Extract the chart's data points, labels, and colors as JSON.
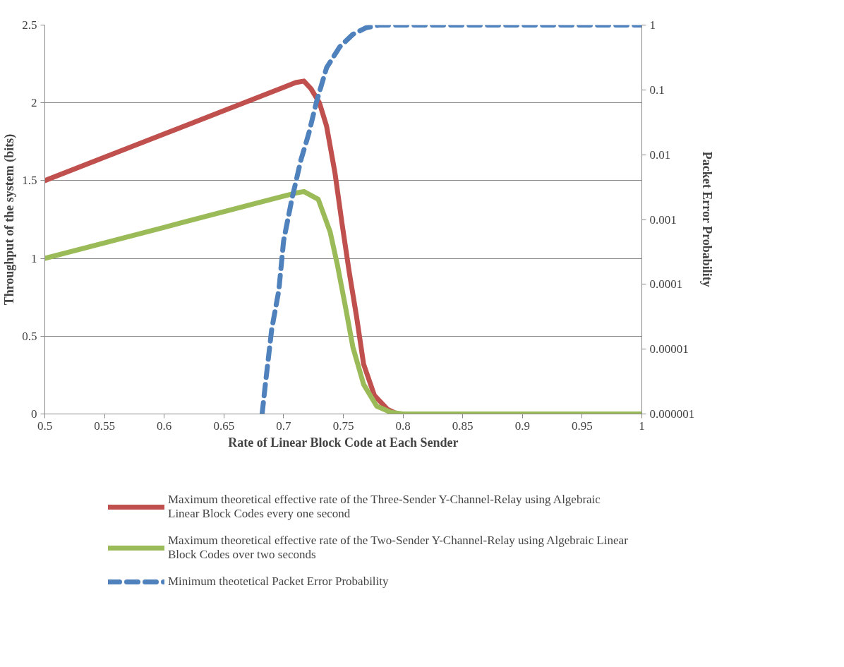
{
  "chart_data": {
    "type": "line",
    "xlabel": "Rate of Linear Block Code at Each Sender",
    "ylabel": "Throughput of the system (bits)",
    "y2label": "Packet Error Probability",
    "xlim": [
      0.5,
      1
    ],
    "xticks": [
      0.5,
      0.55,
      0.6,
      0.65,
      0.7,
      0.75,
      0.8,
      0.85,
      0.9,
      0.95,
      1
    ],
    "ylim": [
      0,
      2.5
    ],
    "yticks": [
      0,
      0.5,
      1,
      1.5,
      2,
      2.5
    ],
    "y2lim": [
      1e-06,
      1
    ],
    "y2ticks": [
      {
        "value": 1e-06,
        "label": "0.000001"
      },
      {
        "value": 1e-05,
        "label": "0.00001"
      },
      {
        "value": 0.0001,
        "label": "0.0001"
      },
      {
        "value": 0.001,
        "label": "0.001"
      },
      {
        "value": 0.01,
        "label": "0.01"
      },
      {
        "value": 0.1,
        "label": "0.1"
      },
      {
        "value": 1,
        "label": "1"
      }
    ],
    "log": "y2",
    "grid": "y",
    "legend": "bottom",
    "series": [
      {
        "name": "Maximum theoretical effective rate of the Three-Sender Y-Channel-Relay using Algebraic Linear Block Codes every one second",
        "color": "#c0504d",
        "line_style": "solid",
        "x": [
          0.5,
          0.55,
          0.6,
          0.65,
          0.7,
          0.71,
          0.717,
          0.723,
          0.73,
          0.736,
          0.743,
          0.749,
          0.755,
          0.761,
          0.767,
          0.776,
          0.787,
          0.795
        ],
        "values": [
          1.5,
          1.65,
          1.8,
          1.95,
          2.1,
          2.13,
          2.14,
          2.09,
          2.0,
          1.85,
          1.55,
          1.22,
          0.91,
          0.63,
          0.32,
          0.12,
          0.03,
          0
        ]
      },
      {
        "name": "Maximum theoretical effective rate of the Two-Sender Y-Channel-Relay using Algebraic Linear Block Codes over two seconds",
        "color": "#9bbb59",
        "line_style": "solid",
        "x": [
          0.5,
          0.55,
          0.6,
          0.65,
          0.7,
          0.71,
          0.717,
          0.729,
          0.739,
          0.745,
          0.752,
          0.758,
          0.767,
          0.778,
          0.79,
          0.8,
          0.85,
          0.9,
          0.95,
          1
        ],
        "values": [
          1.0,
          1.1,
          1.2,
          1.3,
          1.4,
          1.42,
          1.43,
          1.38,
          1.17,
          0.96,
          0.68,
          0.43,
          0.19,
          0.05,
          0.01,
          0,
          0,
          0,
          0,
          0
        ]
      },
      {
        "name": "Minimum theotetical Packet Error Probability",
        "color": "#4f81bd",
        "line_style": "dashed",
        "axis": "y2",
        "x": [
          0.682,
          0.685,
          0.69,
          0.696,
          0.7,
          0.707,
          0.7145,
          0.721,
          0.7275,
          0.736,
          0.747,
          0.758,
          0.769,
          0.78,
          0.85,
          0.9,
          0.95,
          1
        ],
        "values": [
          1e-06,
          3.2e-06,
          2e-05,
          8.1e-05,
          0.00047,
          0.0021,
          0.0083,
          0.021,
          0.065,
          0.22,
          0.46,
          0.72,
          0.91,
          1,
          1,
          1,
          1,
          1
        ]
      }
    ]
  }
}
